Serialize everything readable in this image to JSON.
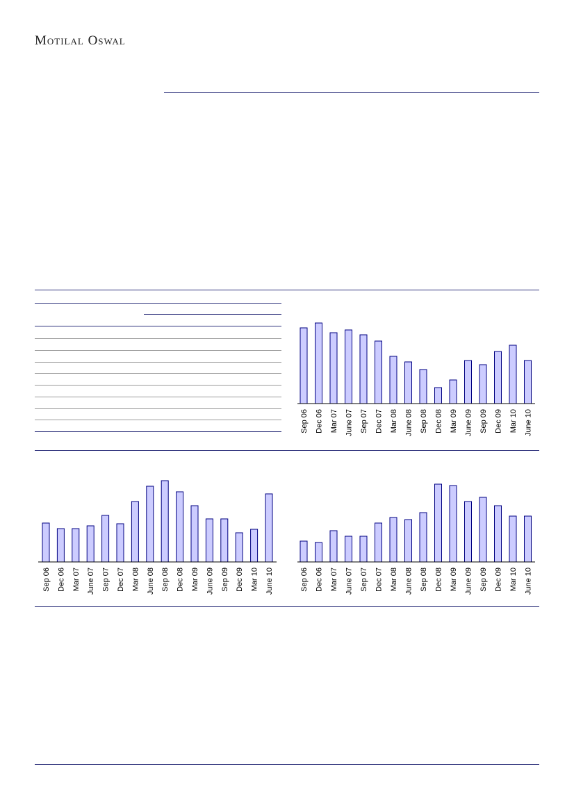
{
  "header": {
    "brand": "Motilal Oswal"
  },
  "charts": [
    {
      "type": "bar",
      "categories": [
        "Sep 06",
        "Dec 06",
        "Mar 07",
        "June 07",
        "Sep 07",
        "Dec 07",
        "Mar 08",
        "June 08",
        "Sep 08",
        "Dec 08",
        "Mar 09",
        "June 09",
        "Sep 09",
        "Dec 09",
        "Mar 10",
        "June 10"
      ],
      "values": [
        109,
        116,
        102,
        106,
        99,
        90,
        68,
        60,
        49,
        23,
        34,
        62,
        56,
        75,
        84,
        62
      ],
      "ylim": [
        0,
        120
      ],
      "color": "#ccccff",
      "edge": "#000080"
    },
    {
      "type": "bar",
      "categories": [
        "Sep 06",
        "Dec 06",
        "Mar 07",
        "June 07",
        "Sep 07",
        "Dec 07",
        "Mar 08",
        "June 08",
        "Sep 08",
        "Dec 08",
        "Mar 09",
        "June 09",
        "Sep 09",
        "Dec 09",
        "Mar 10",
        "June 10"
      ],
      "values": [
        56,
        48,
        48,
        52,
        67,
        55,
        87,
        109,
        117,
        101,
        81,
        62,
        62,
        42,
        47,
        98
      ],
      "ylim": [
        0,
        120
      ],
      "color": "#ccccff",
      "edge": "#000080"
    },
    {
      "type": "bar",
      "categories": [
        "Sep 06",
        "Dec 06",
        "Mar 07",
        "June 07",
        "Sep 07",
        "Dec 07",
        "Mar 08",
        "June 08",
        "Sep 08",
        "Dec 08",
        "Mar 09",
        "June 09",
        "Sep 09",
        "Dec 09",
        "Mar 10",
        "June 10"
      ],
      "values": [
        30,
        28,
        45,
        37,
        37,
        56,
        64,
        61,
        71,
        112,
        110,
        87,
        93,
        81,
        66,
        66
      ],
      "ylim": [
        0,
        120
      ],
      "color": "#ccccff",
      "edge": "#000080"
    }
  ]
}
